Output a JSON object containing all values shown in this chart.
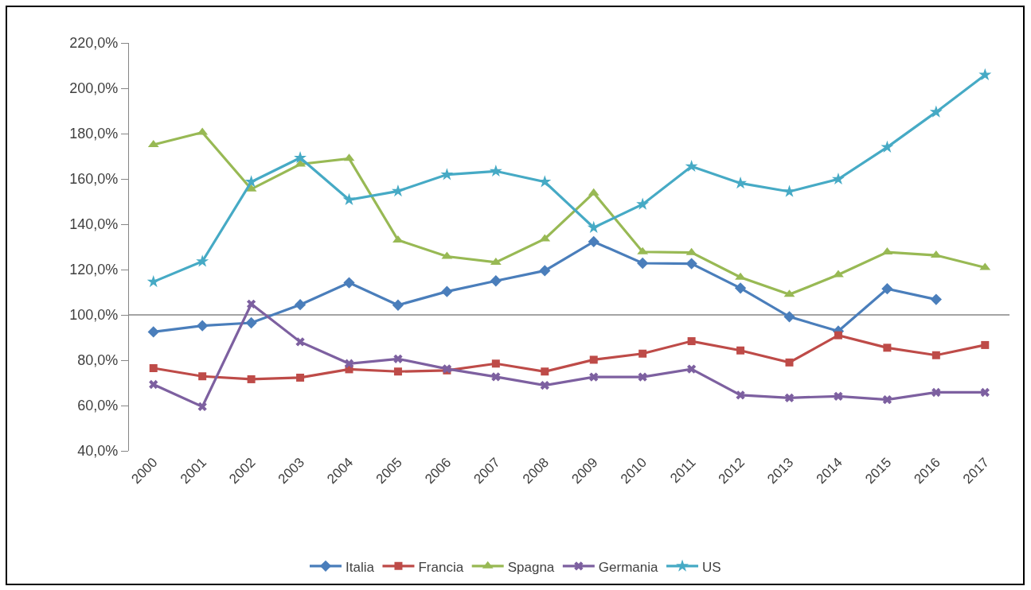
{
  "chart_data": {
    "type": "line",
    "categories": [
      "2000",
      "2001",
      "2002",
      "2003",
      "2004",
      "2005",
      "2006",
      "2007",
      "2008",
      "2009",
      "2010",
      "2011",
      "2012",
      "2013",
      "2014",
      "2015",
      "2016",
      "2017"
    ],
    "series": [
      {
        "name": "Italia",
        "color": "#4a7ebb",
        "marker": "diamond",
        "values": [
          92.5,
          95.2,
          96.5,
          104.5,
          114.2,
          104.3,
          110.3,
          115.0,
          119.5,
          132.3,
          122.8,
          122.6,
          111.8,
          99.2,
          92.8,
          111.5,
          106.8,
          null
        ]
      },
      {
        "name": "Francia",
        "color": "#be4b48",
        "marker": "square",
        "values": [
          76.5,
          72.9,
          71.6,
          72.3,
          76.0,
          75.0,
          75.5,
          78.5,
          75.0,
          80.2,
          82.9,
          88.4,
          84.3,
          79.0,
          91.0,
          85.5,
          82.2,
          86.7
        ]
      },
      {
        "name": "Spagna",
        "color": "#98b954",
        "marker": "triangle",
        "values": [
          175.1,
          180.5,
          155.5,
          166.5,
          169.0,
          133.0,
          125.8,
          123.2,
          133.5,
          153.8,
          127.8,
          127.5,
          116.6,
          109.0,
          117.7,
          127.7,
          126.3,
          120.9
        ]
      },
      {
        "name": "Germania",
        "color": "#7d60a0",
        "marker": "cross",
        "values": [
          69.3,
          59.5,
          104.8,
          88.1,
          78.5,
          80.6,
          76.2,
          72.7,
          68.9,
          72.6,
          72.6,
          76.1,
          64.6,
          63.4,
          64.1,
          62.6,
          65.8,
          65.8
        ]
      },
      {
        "name": "US",
        "color": "#46aac5",
        "marker": "star",
        "values": [
          114.6,
          123.6,
          158.7,
          169.3,
          150.8,
          154.6,
          161.9,
          163.4,
          158.7,
          138.5,
          148.8,
          165.5,
          158.1,
          154.4,
          159.9,
          174.0,
          189.5,
          205.9
        ]
      }
    ],
    "ylim": [
      40,
      220
    ],
    "yticks": [
      {
        "value": 40,
        "label": "40,0%"
      },
      {
        "value": 60,
        "label": "60,0%"
      },
      {
        "value": 80,
        "label": "80,0%"
      },
      {
        "value": 100,
        "label": "100,0%"
      },
      {
        "value": 120,
        "label": "120,0%"
      },
      {
        "value": 140,
        "label": "140,0%"
      },
      {
        "value": 160,
        "label": "160,0%"
      },
      {
        "value": 180,
        "label": "180,0%"
      },
      {
        "value": 200,
        "label": "200,0%"
      },
      {
        "value": 220,
        "label": "220,0%"
      }
    ],
    "ref_lines": [
      {
        "axis": "y",
        "value": 100,
        "color": "#868686"
      }
    ],
    "legend": "bottom"
  }
}
